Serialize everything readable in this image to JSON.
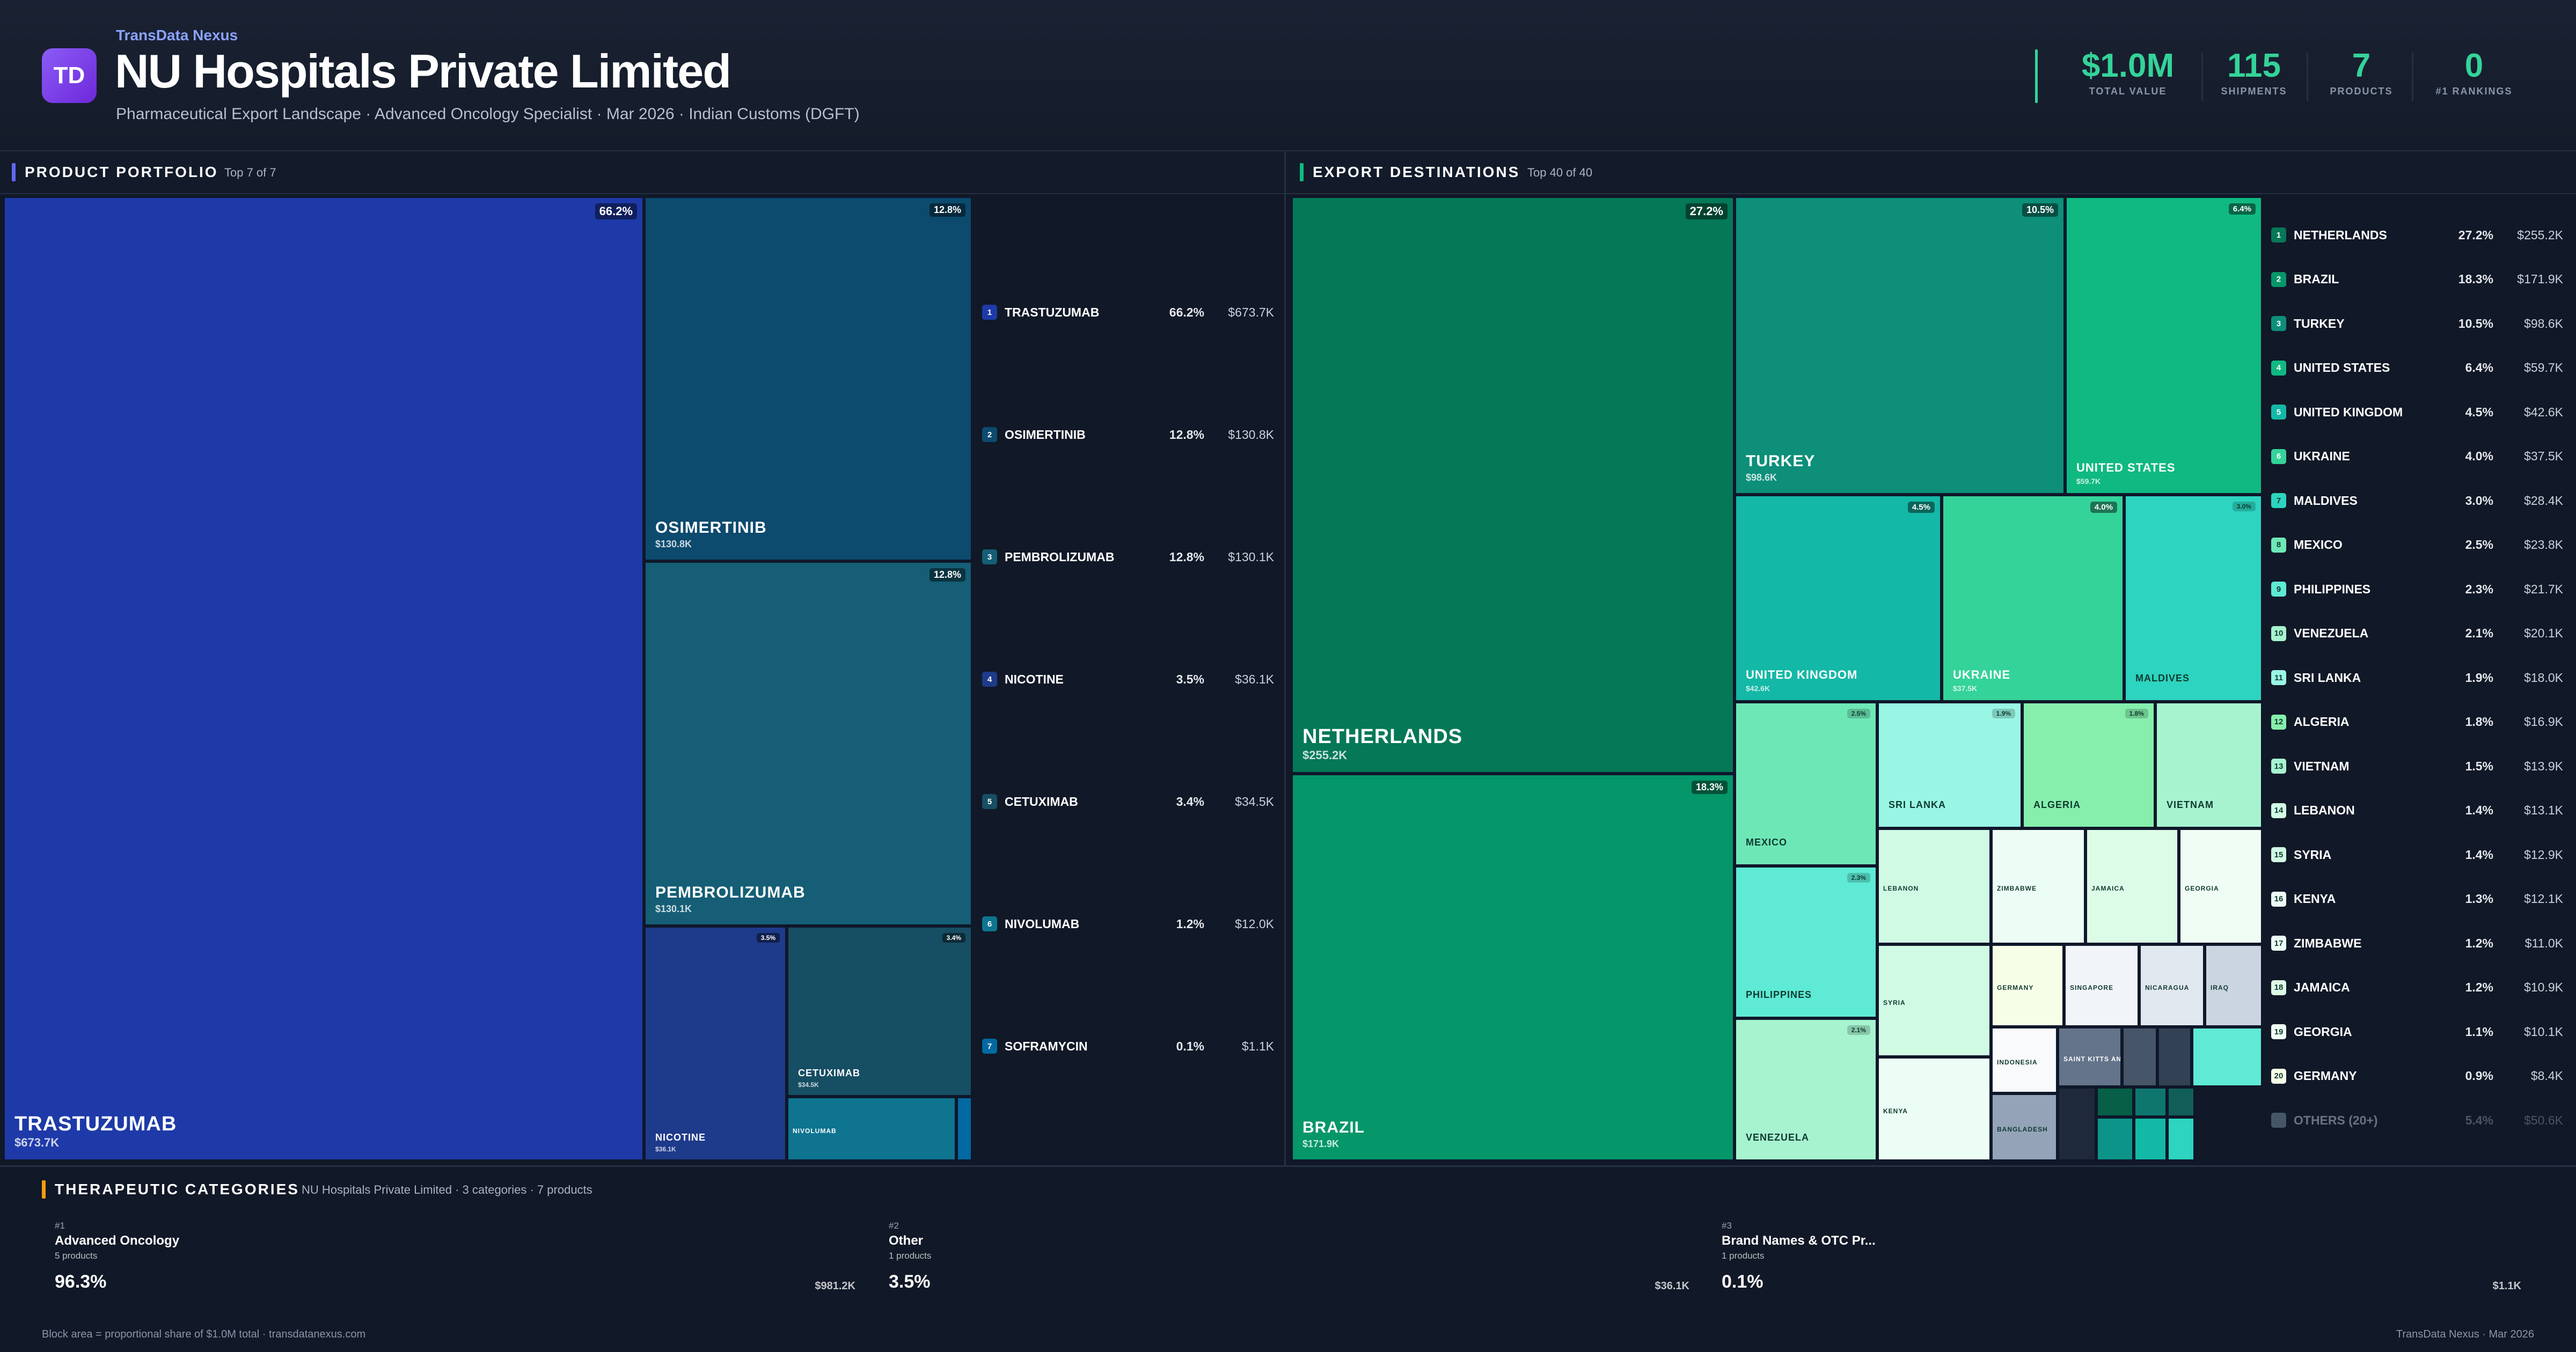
{
  "header": {
    "logo": "TD",
    "brand": "TransData Nexus",
    "company": "NU Hospitals Private Limited",
    "subtitle": "Pharmaceutical Export Landscape · Advanced Oncology Specialist · Mar 2026 · Indian Customs (DGFT)",
    "accent_color": "#34d399",
    "stats": [
      {
        "value": "$1.0M",
        "label": "TOTAL VALUE"
      },
      {
        "value": "115",
        "label": "SHIPMENTS"
      },
      {
        "value": "7",
        "label": "PRODUCTS"
      },
      {
        "value": "0",
        "label": "#1 RANKINGS"
      }
    ]
  },
  "portfolio": {
    "title": "PRODUCT PORTFOLIO",
    "subtitle": "Top 7 of 7",
    "tiles": [
      {
        "name": "TRASTUZUMAB",
        "value": "$673.7K",
        "pct": "66.2%",
        "color": "#1e3aa8"
      },
      {
        "name": "OSIMERTINIB",
        "value": "$130.8K",
        "pct": "12.8%",
        "color": "#0c4a6e"
      },
      {
        "name": "PEMBROLIZUMAB",
        "value": "$130.1K",
        "pct": "12.8%",
        "color": "#155e75"
      },
      {
        "name": "NICOTINE",
        "value": "$36.1K",
        "pct": "3.5%",
        "color": "#1e3a8a"
      },
      {
        "name": "CETUXIMAB",
        "value": "$34.5K",
        "pct": "3.4%",
        "color": "#164e63"
      },
      {
        "name": "NIVOLUMAB",
        "value": "",
        "pct": "",
        "color": "#0e7490"
      },
      {
        "name": "",
        "value": "",
        "pct": "",
        "color": "#0369a1"
      }
    ],
    "legend": [
      {
        "rank": "1",
        "name": "TRASTUZUMAB",
        "pct": "66.2%",
        "value": "$673.7K",
        "color": "#1e3aa8"
      },
      {
        "rank": "2",
        "name": "OSIMERTINIB",
        "pct": "12.8%",
        "value": "$130.8K",
        "color": "#0c4a6e"
      },
      {
        "rank": "3",
        "name": "PEMBROLIZUMAB",
        "pct": "12.8%",
        "value": "$130.1K",
        "color": "#155e75"
      },
      {
        "rank": "4",
        "name": "NICOTINE",
        "pct": "3.5%",
        "value": "$36.1K",
        "color": "#1e3a8a"
      },
      {
        "rank": "5",
        "name": "CETUXIMAB",
        "pct": "3.4%",
        "value": "$34.5K",
        "color": "#164e63"
      },
      {
        "rank": "6",
        "name": "NIVOLUMAB",
        "pct": "1.2%",
        "value": "$12.0K",
        "color": "#0e7490"
      },
      {
        "rank": "7",
        "name": "SOFRAMYCIN",
        "pct": "0.1%",
        "value": "$1.1K",
        "color": "#0369a1"
      }
    ]
  },
  "destinations": {
    "title": "EXPORT DESTINATIONS",
    "subtitle": "Top 40 of 40",
    "tiles": [
      {
        "name": "NETHERLANDS",
        "value": "$255.2K",
        "pct": "27.2%",
        "color": "#047857"
      },
      {
        "name": "BRAZIL",
        "value": "$171.9K",
        "pct": "18.3%",
        "color": "#059669"
      },
      {
        "name": "TURKEY",
        "value": "$98.6K",
        "pct": "10.5%",
        "color": "#0d8f7a"
      },
      {
        "name": "UNITED STATES",
        "value": "$59.7K",
        "pct": "6.4%",
        "color": "#10b981"
      },
      {
        "name": "UNITED KINGDOM",
        "value": "$42.6K",
        "pct": "4.5%",
        "color": "#14b8a6"
      },
      {
        "name": "UKRAINE",
        "value": "$37.5K",
        "pct": "4.0%",
        "color": "#34d399"
      },
      {
        "name": "MALDIVES",
        "value": "",
        "pct": "3.0%",
        "color": "#2dd4bf"
      },
      {
        "name": "MEXICO",
        "value": "",
        "pct": "2.5%",
        "color": "#6ee7b7"
      },
      {
        "name": "SRI LANKA",
        "value": "",
        "pct": "1.9%",
        "color": "#99f6e4"
      },
      {
        "name": "ALGERIA",
        "value": "",
        "pct": "1.8%",
        "color": "#86efac"
      },
      {
        "name": "VIETNAM",
        "value": "",
        "pct": "",
        "color": "#a7f3d0"
      },
      {
        "name": "PHILIPPINES",
        "value": "",
        "pct": "2.3%",
        "color": "#5eead4"
      },
      {
        "name": "LEBANON",
        "value": "",
        "pct": "",
        "color": "#d1fae5"
      },
      {
        "name": "ZIMBABWE",
        "value": "",
        "pct": "",
        "color": "#ecfdf5"
      },
      {
        "name": "JAMAICA",
        "value": "",
        "pct": "",
        "color": "#dcfce7"
      },
      {
        "name": "GEORGIA",
        "value": "",
        "pct": "",
        "color": "#f0fdf4"
      },
      {
        "name": "VENEZUELA",
        "value": "",
        "pct": "2.1%",
        "color": "#a7f3d0"
      },
      {
        "name": "SYRIA",
        "value": "",
        "pct": "",
        "color": "#d1fae5"
      },
      {
        "name": "GERMANY",
        "value": "",
        "pct": "",
        "color": "#f7fee7"
      },
      {
        "name": "SINGAPORE",
        "value": "",
        "pct": "",
        "color": "#f1f5f9"
      },
      {
        "name": "NICARAGUA",
        "value": "",
        "pct": "",
        "color": "#e2e8f0"
      },
      {
        "name": "IRAQ",
        "value": "",
        "pct": "",
        "color": "#cbd5e1"
      },
      {
        "name": "KENYA",
        "value": "",
        "pct": "",
        "color": "#ecfdf5"
      },
      {
        "name": "INDONESIA",
        "value": "",
        "pct": "",
        "color": "#f8fafc"
      },
      {
        "name": "BANGLADESH",
        "value": "",
        "pct": "",
        "color": "#94a3b8"
      },
      {
        "name": "SAINT KITTS AND NEVIS",
        "value": "",
        "pct": "",
        "color": "#64748b"
      },
      {
        "name": "",
        "value": "",
        "pct": "",
        "color": "#475569"
      },
      {
        "name": "",
        "value": "",
        "pct": "",
        "color": "#334155"
      },
      {
        "name": "",
        "value": "",
        "pct": "",
        "color": "#1e293b"
      },
      {
        "name": "",
        "value": "",
        "pct": "",
        "color": "#065f46"
      },
      {
        "name": "",
        "value": "",
        "pct": "",
        "color": "#0f766e"
      },
      {
        "name": "",
        "value": "",
        "pct": "",
        "color": "#115e59"
      },
      {
        "name": "",
        "value": "",
        "pct": "",
        "color": "#0d9488"
      },
      {
        "name": "",
        "value": "",
        "pct": "",
        "color": "#14b8a6"
      },
      {
        "name": "",
        "value": "",
        "pct": "",
        "color": "#2dd4bf"
      },
      {
        "name": "",
        "value": "",
        "pct": "",
        "color": "#5eead4"
      }
    ],
    "legend": [
      {
        "rank": "1",
        "name": "NETHERLANDS",
        "pct": "27.2%",
        "value": "$255.2K",
        "color": "#047857"
      },
      {
        "rank": "2",
        "name": "BRAZIL",
        "pct": "18.3%",
        "value": "$171.9K",
        "color": "#059669"
      },
      {
        "rank": "3",
        "name": "TURKEY",
        "pct": "10.5%",
        "value": "$98.6K",
        "color": "#0d8f7a"
      },
      {
        "rank": "4",
        "name": "UNITED STATES",
        "pct": "6.4%",
        "value": "$59.7K",
        "color": "#10b981"
      },
      {
        "rank": "5",
        "name": "UNITED KINGDOM",
        "pct": "4.5%",
        "value": "$42.6K",
        "color": "#14b8a6"
      },
      {
        "rank": "6",
        "name": "UKRAINE",
        "pct": "4.0%",
        "value": "$37.5K",
        "color": "#34d399"
      },
      {
        "rank": "7",
        "name": "MALDIVES",
        "pct": "3.0%",
        "value": "$28.4K",
        "color": "#2dd4bf"
      },
      {
        "rank": "8",
        "name": "MEXICO",
        "pct": "2.5%",
        "value": "$23.8K",
        "color": "#6ee7b7"
      },
      {
        "rank": "9",
        "name": "PHILIPPINES",
        "pct": "2.3%",
        "value": "$21.7K",
        "color": "#5eead4"
      },
      {
        "rank": "10",
        "name": "VENEZUELA",
        "pct": "2.1%",
        "value": "$20.1K",
        "color": "#a7f3d0"
      },
      {
        "rank": "11",
        "name": "SRI LANKA",
        "pct": "1.9%",
        "value": "$18.0K",
        "color": "#99f6e4"
      },
      {
        "rank": "12",
        "name": "ALGERIA",
        "pct": "1.8%",
        "value": "$16.9K",
        "color": "#86efac"
      },
      {
        "rank": "13",
        "name": "VIETNAM",
        "pct": "1.5%",
        "value": "$13.9K",
        "color": "#a7f3d0"
      },
      {
        "rank": "14",
        "name": "LEBANON",
        "pct": "1.4%",
        "value": "$13.1K",
        "color": "#d1fae5"
      },
      {
        "rank": "15",
        "name": "SYRIA",
        "pct": "1.4%",
        "value": "$12.9K",
        "color": "#d1fae5"
      },
      {
        "rank": "16",
        "name": "KENYA",
        "pct": "1.3%",
        "value": "$12.1K",
        "color": "#ecfdf5"
      },
      {
        "rank": "17",
        "name": "ZIMBABWE",
        "pct": "1.2%",
        "value": "$11.0K",
        "color": "#ecfdf5"
      },
      {
        "rank": "18",
        "name": "JAMAICA",
        "pct": "1.2%",
        "value": "$10.9K",
        "color": "#dcfce7"
      },
      {
        "rank": "19",
        "name": "GEORGIA",
        "pct": "1.1%",
        "value": "$10.1K",
        "color": "#f0fdf4"
      },
      {
        "rank": "20",
        "name": "GERMANY",
        "pct": "0.9%",
        "value": "$8.4K",
        "color": "#f7fee7"
      },
      {
        "rank": "",
        "name": "OTHERS (20+)",
        "pct": "5.4%",
        "value": "$50.6K",
        "color": "#475569"
      }
    ]
  },
  "categories": {
    "title": "THERAPEUTIC CATEGORIES",
    "subtitle": "NU Hospitals Private Limited · 3 categories · 7 products",
    "items": [
      {
        "rank": "#1",
        "name": "Advanced Oncology",
        "products": "5 products",
        "share": "96.3%",
        "value": "$981.2K",
        "color": "#b91c1c"
      },
      {
        "rank": "#2",
        "name": "Other",
        "products": "1 products",
        "share": "3.5%",
        "value": "$36.1K",
        "color": "#64748b"
      },
      {
        "rank": "#3",
        "name": "Brand Names & OTC Pr...",
        "products": "1 products",
        "share": "0.1%",
        "value": "$1.1K",
        "color": "#64748b"
      }
    ]
  },
  "footer": {
    "left": "Block area = proportional share of $1.0M total · transdatanexus.com",
    "right": "TransData Nexus · Mar 2026"
  }
}
